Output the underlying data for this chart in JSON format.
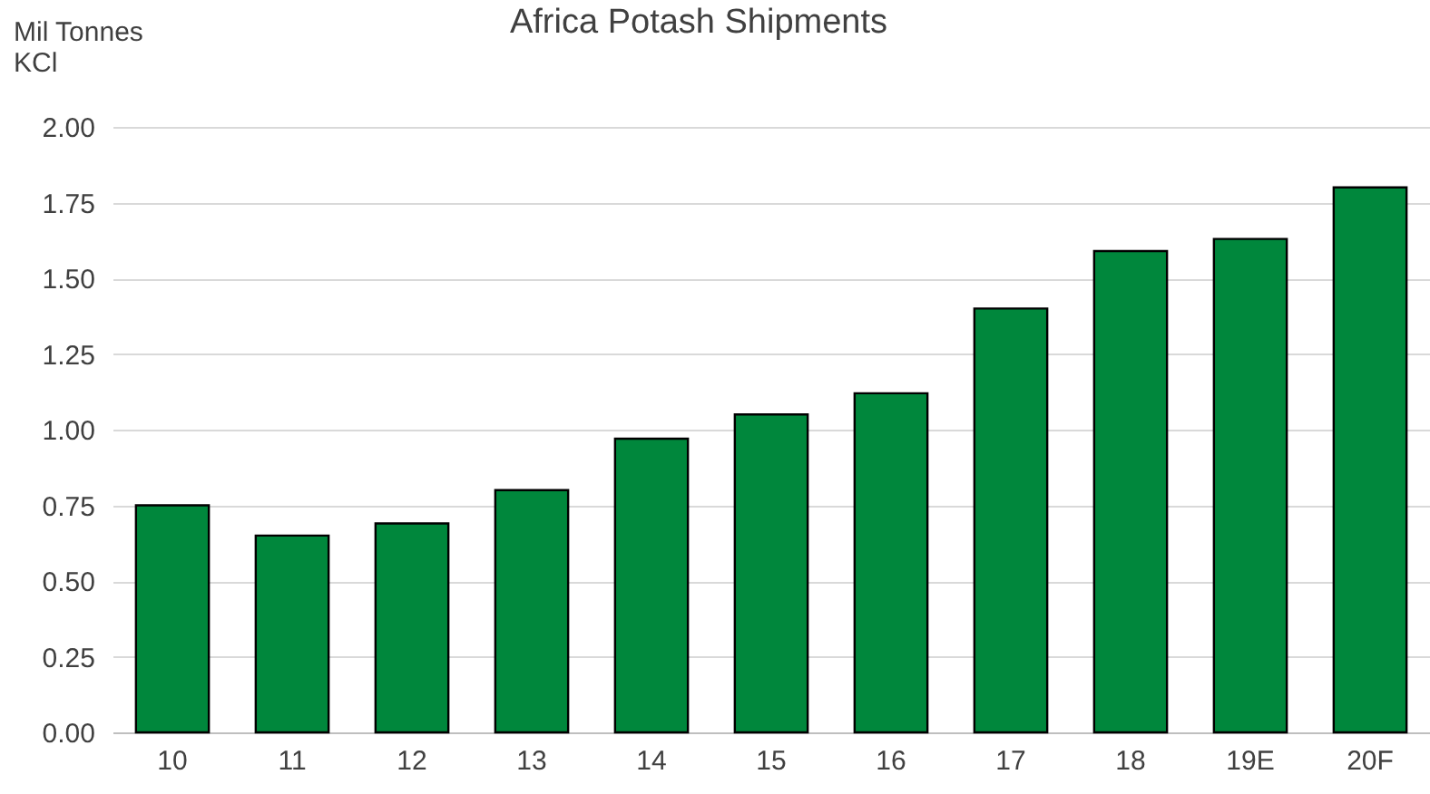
{
  "chart_data": {
    "type": "bar",
    "title": "Africa Potash Shipments",
    "ylabel": "Mil Tonnes KCl",
    "categories": [
      "10",
      "11",
      "12",
      "13",
      "14",
      "15",
      "16",
      "17",
      "18",
      "19E",
      "20F"
    ],
    "values": [
      0.75,
      0.65,
      0.69,
      0.8,
      0.97,
      1.05,
      1.12,
      1.4,
      1.59,
      1.63,
      1.8
    ],
    "color": "#00873c",
    "ylim": [
      0,
      2
    ],
    "yticks": [
      {
        "value": 0,
        "label": "0.00"
      },
      0.25,
      {
        "value": 0.5,
        "label": "0.50"
      },
      0.75,
      {
        "value": 1,
        "label": "1.00"
      },
      1.25,
      {
        "value": 1.5,
        "label": "1.50"
      },
      1.75,
      {
        "value": 2,
        "label": "2.00"
      }
    ],
    "grid": "y"
  }
}
